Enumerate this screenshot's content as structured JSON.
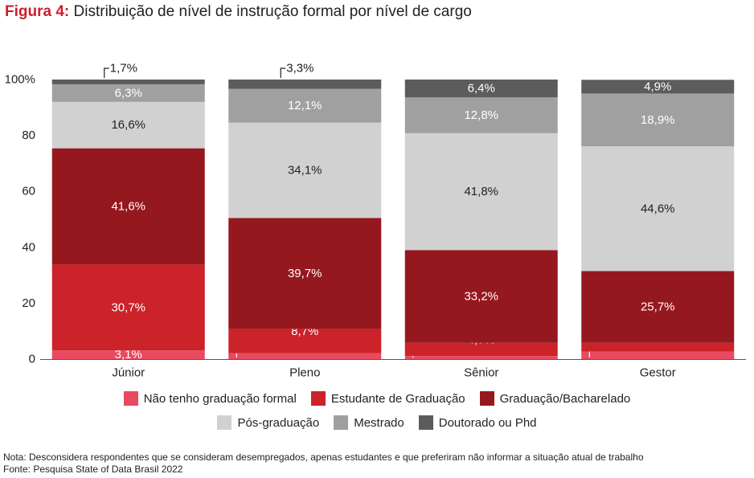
{
  "title": {
    "prefix": "Figura 4:",
    "text": "Distribuição de nível de instrução formal por nível de cargo"
  },
  "colors": {
    "nao_tenho": "#e84a5f",
    "estudante": "#cc2229",
    "graduacao": "#96181f",
    "pos": "#d1d1d1",
    "mestrado": "#a0a0a0",
    "doutorado": "#5c5c5c"
  },
  "chart_data": {
    "type": "bar",
    "stacked": true,
    "categories": [
      "Júnior",
      "Pleno",
      "Sênior",
      "Gestor"
    ],
    "ylim": [
      0,
      100
    ],
    "yticks": [
      "0",
      "20",
      "40",
      "60",
      "80",
      "100%"
    ],
    "legend_position": "bottom",
    "series": [
      {
        "name": "Não tenho graduação formal",
        "values": [
          3.1,
          2.1,
          1.1,
          2.7
        ],
        "labels": [
          "3,1%",
          "2,1%",
          "1,1%",
          "2,7%"
        ],
        "color": "#e84a5f",
        "label_color": "#ffffff"
      },
      {
        "name": "Estudante de Graduação",
        "values": [
          30.7,
          8.7,
          4.7,
          3.1
        ],
        "labels": [
          "30,7%",
          "8,7%",
          "4,7%",
          "3,1%"
        ],
        "color": "#cc2229",
        "label_color": "#ffffff"
      },
      {
        "name": "Graduação/Bacharelado",
        "values": [
          41.6,
          39.7,
          33.2,
          25.7
        ],
        "labels": [
          "41,6%",
          "39,7%",
          "33,2%",
          "25,7%"
        ],
        "color": "#96181f",
        "label_color": "#ffffff"
      },
      {
        "name": "Pós-graduação",
        "values": [
          16.6,
          34.1,
          41.8,
          44.6
        ],
        "labels": [
          "16,6%",
          "34,1%",
          "41,8%",
          "44,6%"
        ],
        "color": "#d1d1d1",
        "label_color": "#222222"
      },
      {
        "name": "Mestrado",
        "values": [
          6.3,
          12.1,
          12.8,
          18.9
        ],
        "labels": [
          "6,3%",
          "12,1%",
          "12,8%",
          "18,9%"
        ],
        "color": "#a0a0a0",
        "label_color": "#ffffff"
      },
      {
        "name": "Doutorado ou Phd",
        "values": [
          1.7,
          3.3,
          6.4,
          4.9
        ],
        "labels": [
          "1,7%",
          "3,3%",
          "6,4%",
          "4,9%"
        ],
        "color": "#5c5c5c",
        "label_color": "#ffffff"
      }
    ]
  },
  "notes": {
    "nota": "Nota: Desconsidera respondentes que se consideram desempregados, apenas estudantes e que preferiram não informar a situação atual de trabalho",
    "fonte": "Fonte: Pesquisa State of Data Brasil 2022"
  }
}
